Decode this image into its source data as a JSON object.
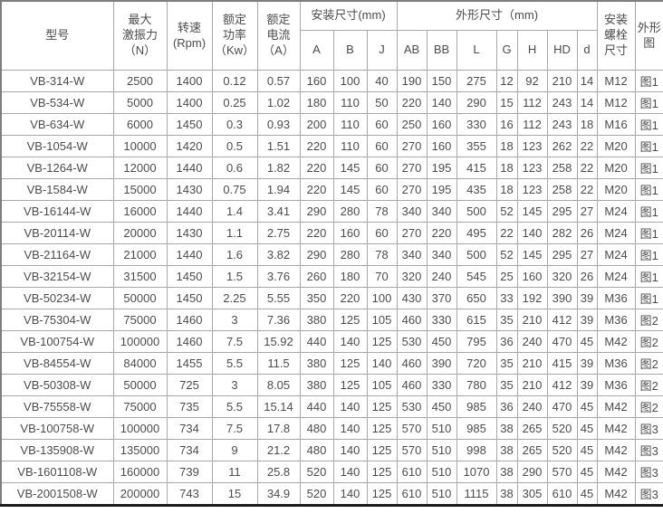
{
  "table": {
    "header": {
      "model": "型号",
      "max_force": "最大\n激振力\n（N）",
      "speed": "转速\n(Rpm)",
      "rated_power": "额定\n功率\n（Kw）",
      "rated_current": "额定\n电流\n（A）",
      "install_dims": "安装尺寸(mm)",
      "install_sub": [
        "A",
        "B",
        "J"
      ],
      "outline_dims": "外形尺寸（mm)",
      "outline_sub": [
        "AB",
        "BB",
        "L",
        "G",
        "H",
        "HD",
        "d"
      ],
      "bolt": "安装\n螺栓\n尺寸",
      "drawing": "外形图"
    },
    "rows": [
      [
        "VB-314-W",
        "2500",
        "1400",
        "0.12",
        "0.57",
        "160",
        "100",
        "40",
        "190",
        "150",
        "275",
        "12",
        "92",
        "210",
        "14",
        "M12",
        "图1"
      ],
      [
        "VB-534-W",
        "5000",
        "1400",
        "0.25",
        "1.02",
        "180",
        "110",
        "50",
        "220",
        "140",
        "290",
        "15",
        "112",
        "243",
        "14",
        "M12",
        "图1"
      ],
      [
        "VB-634-W",
        "6000",
        "1450",
        "0.3",
        "0.93",
        "200",
        "110",
        "60",
        "250",
        "160",
        "330",
        "16",
        "112",
        "243",
        "18",
        "M16",
        "图1"
      ],
      [
        "VB-1054-W",
        "10000",
        "1420",
        "0.5",
        "1.51",
        "220",
        "110",
        "60",
        "270",
        "160",
        "355",
        "18",
        "123",
        "262",
        "22",
        "M20",
        "图1"
      ],
      [
        "VB-1264-W",
        "12000",
        "1440",
        "0.6",
        "1.82",
        "220",
        "145",
        "60",
        "270",
        "195",
        "415",
        "18",
        "123",
        "258",
        "22",
        "M20",
        "图1"
      ],
      [
        "VB-1584-W",
        "15000",
        "1430",
        "0.75",
        "1.94",
        "220",
        "145",
        "60",
        "270",
        "195",
        "435",
        "18",
        "123",
        "258",
        "22",
        "M20",
        "图1"
      ],
      [
        "VB-16144-W",
        "16000",
        "1440",
        "1.4",
        "3.41",
        "290",
        "280",
        "78",
        "340",
        "340",
        "500",
        "52",
        "145",
        "295",
        "27",
        "M24",
        "图1"
      ],
      [
        "VB-20114-W",
        "20000",
        "1430",
        "1.1",
        "2.75",
        "220",
        "160",
        "60",
        "270",
        "220",
        "495",
        "22",
        "140",
        "282",
        "26",
        "M24",
        "图1"
      ],
      [
        "VB-21164-W",
        "21000",
        "1440",
        "1.6",
        "3.82",
        "290",
        "280",
        "78",
        "340",
        "340",
        "500",
        "52",
        "145",
        "295",
        "27",
        "M24",
        "图1"
      ],
      [
        "VB-32154-W",
        "31500",
        "1450",
        "1.5",
        "3.76",
        "260",
        "180",
        "70",
        "320",
        "240",
        "545",
        "25",
        "160",
        "320",
        "26",
        "M24",
        "图1"
      ],
      [
        "VB-50234-W",
        "50000",
        "1450",
        "2.25",
        "5.55",
        "350",
        "220",
        "100",
        "430",
        "370",
        "650",
        "33",
        "192",
        "390",
        "39",
        "M36",
        "图1"
      ],
      [
        "VB-75304-W",
        "75000",
        "1460",
        "3",
        "7.36",
        "380",
        "125",
        "105",
        "460",
        "330",
        "615",
        "35",
        "210",
        "412",
        "39",
        "M36",
        "图2"
      ],
      [
        "VB-100754-W",
        "100000",
        "1460",
        "7.5",
        "15.92",
        "440",
        "140",
        "125",
        "530",
        "450",
        "795",
        "36",
        "240",
        "470",
        "45",
        "M42",
        "图2"
      ],
      [
        "VB-84554-W",
        "84000",
        "1455",
        "5.5",
        "11.5",
        "380",
        "125",
        "140",
        "460",
        "390",
        "720",
        "35",
        "210",
        "415",
        "39",
        "M36",
        "图2"
      ],
      [
        "VB-50308-W",
        "50000",
        "725",
        "3",
        "8.05",
        "380",
        "125",
        "105",
        "460",
        "330",
        "780",
        "35",
        "210",
        "412",
        "39",
        "M36",
        "图2"
      ],
      [
        "VB-75558-W",
        "75000",
        "735",
        "5.5",
        "15.14",
        "440",
        "140",
        "125",
        "530",
        "450",
        "985",
        "36",
        "240",
        "470",
        "45",
        "M42",
        "图2"
      ],
      [
        "VB-100758-W",
        "100000",
        "734",
        "7.5",
        "17.8",
        "480",
        "140",
        "125",
        "570",
        "510",
        "985",
        "38",
        "265",
        "520",
        "45",
        "M42",
        "图3"
      ],
      [
        "VB-135908-W",
        "135000",
        "734",
        "9",
        "21.2",
        "480",
        "140",
        "125",
        "570",
        "510",
        "998",
        "38",
        "265",
        "520",
        "45",
        "M42",
        "图3"
      ],
      [
        "VB-1601108-W",
        "160000",
        "739",
        "11",
        "25.8",
        "520",
        "140",
        "125",
        "610",
        "510",
        "1070",
        "38",
        "290",
        "570",
        "45",
        "M42",
        "图3"
      ],
      [
        "VB-2001508-W",
        "200000",
        "743",
        "15",
        "34.9",
        "520",
        "140",
        "125",
        "610",
        "510",
        "1115",
        "38",
        "305",
        "610",
        "45",
        "M42",
        "图3"
      ]
    ]
  }
}
